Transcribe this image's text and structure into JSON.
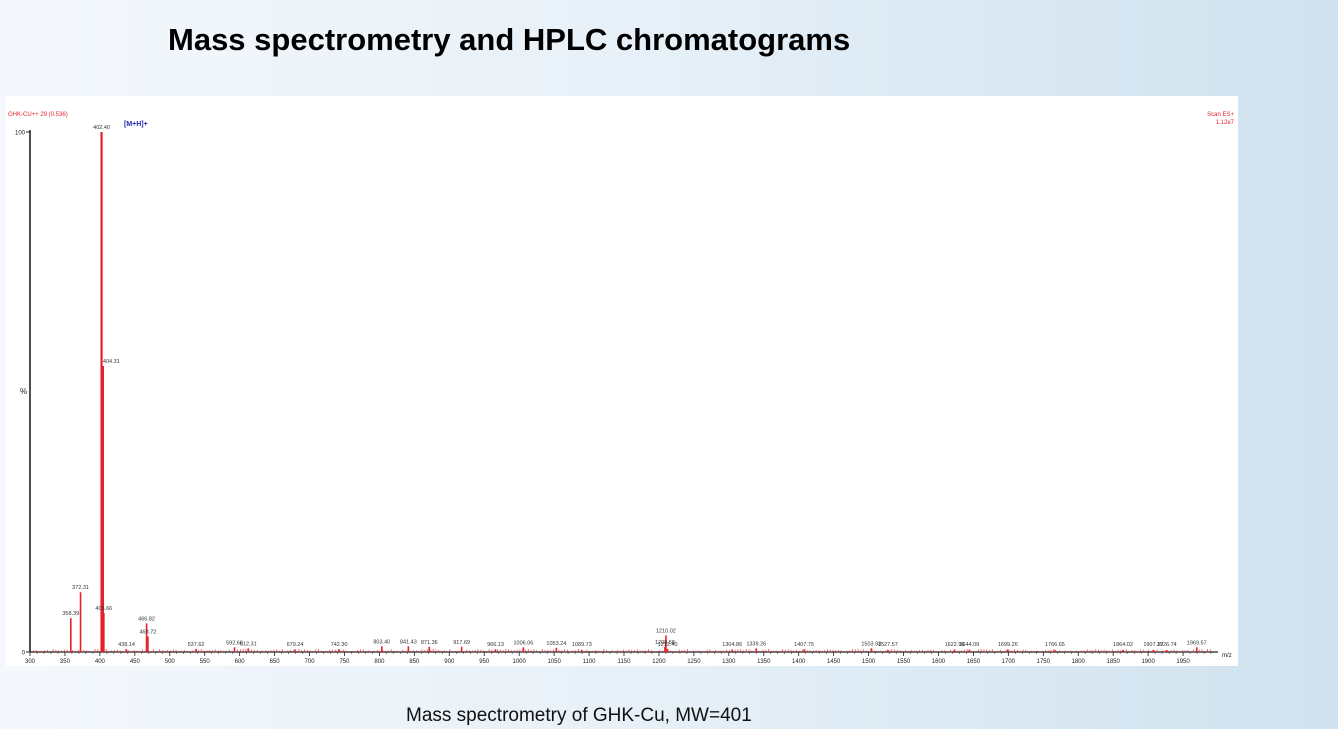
{
  "page": {
    "title": "Mass spectrometry and HPLC chromatograms",
    "caption": "Mass spectrometry of GHK-Cu, MW=401"
  },
  "chart_data": {
    "type": "bar",
    "header_left": "GHK-CU++ 29 (0.536)",
    "header_right": [
      "Scan ES+",
      "1.12e7"
    ],
    "ylabel": "%",
    "xlabel": "m/z",
    "xlim": [
      300,
      2000
    ],
    "ylim": [
      0,
      100
    ],
    "y_ticks": [
      0,
      100
    ],
    "x_ticks": [
      300,
      350,
      400,
      450,
      500,
      550,
      600,
      650,
      700,
      750,
      800,
      850,
      900,
      950,
      1000,
      1050,
      1100,
      1150,
      1200,
      1250,
      1300,
      1350,
      1400,
      1450,
      1500,
      1550,
      1600,
      1650,
      1700,
      1750,
      1800,
      1850,
      1900,
      1950
    ],
    "annotation": "[M+H]+",
    "colors": {
      "peaks": "#e8202a",
      "annotation": "#1f2bb0",
      "axis": "#222222"
    },
    "peaks": [
      {
        "x": 402.4,
        "y": 100,
        "label": "402.40"
      },
      {
        "x": 404.31,
        "y": 55,
        "label": "404.31"
      },
      {
        "x": 372.31,
        "y": 11.5,
        "label": "372.31"
      },
      {
        "x": 358.39,
        "y": 6.5,
        "label": "358.39"
      },
      {
        "x": 405.66,
        "y": 7.5,
        "label": "405.66"
      },
      {
        "x": 466.82,
        "y": 5.5,
        "label": "466.82"
      },
      {
        "x": 468.72,
        "y": 3.0,
        "label": "468.72"
      },
      {
        "x": 438.14,
        "y": 0.5,
        "label": "438.14"
      },
      {
        "x": 537.62,
        "y": 0.6,
        "label": "537.62"
      },
      {
        "x": 592.66,
        "y": 0.9,
        "label": "592.66"
      },
      {
        "x": 612.31,
        "y": 0.7,
        "label": "612.31"
      },
      {
        "x": 679.24,
        "y": 0.5,
        "label": "679.24"
      },
      {
        "x": 742.3,
        "y": 0.5,
        "label": "742.30"
      },
      {
        "x": 803.4,
        "y": 1.1,
        "label": "803.40"
      },
      {
        "x": 841.43,
        "y": 1.1,
        "label": "841.43"
      },
      {
        "x": 871.36,
        "y": 1.0,
        "label": "871.36"
      },
      {
        "x": 917.69,
        "y": 1.0,
        "label": "917.69"
      },
      {
        "x": 966.13,
        "y": 0.5,
        "label": "966.13"
      },
      {
        "x": 1006.06,
        "y": 0.9,
        "label": "1006.06"
      },
      {
        "x": 1053.24,
        "y": 0.8,
        "label": "1053.24"
      },
      {
        "x": 1089.73,
        "y": 0.4,
        "label": "1089.73"
      },
      {
        "x": 1208.58,
        "y": 1.0,
        "label": "1208.58"
      },
      {
        "x": 1210.02,
        "y": 3.2,
        "label": "1210.02"
      },
      {
        "x": 1212.4,
        "y": 0.6,
        "label": "1212.40"
      },
      {
        "x": 1304.86,
        "y": 0.5,
        "label": "1304.86"
      },
      {
        "x": 1339.26,
        "y": 0.7,
        "label": "1339.26"
      },
      {
        "x": 1407.75,
        "y": 0.5,
        "label": "1407.75"
      },
      {
        "x": 1503.93,
        "y": 0.7,
        "label": "1503.93"
      },
      {
        "x": 1527.57,
        "y": 0.4,
        "label": "1527.57"
      },
      {
        "x": 1622.96,
        "y": 0.5,
        "label": "1622.96"
      },
      {
        "x": 1644.09,
        "y": 0.4,
        "label": "1644.09"
      },
      {
        "x": 1699.26,
        "y": 0.5,
        "label": "1699.26"
      },
      {
        "x": 1766.65,
        "y": 0.4,
        "label": "1766.65"
      },
      {
        "x": 1864.02,
        "y": 0.4,
        "label": "1864.02"
      },
      {
        "x": 1907.37,
        "y": 0.4,
        "label": "1907.37"
      },
      {
        "x": 1926.74,
        "y": 0.4,
        "label": "1926.74"
      },
      {
        "x": 1969.57,
        "y": 0.9,
        "label": "1969.57"
      }
    ]
  }
}
